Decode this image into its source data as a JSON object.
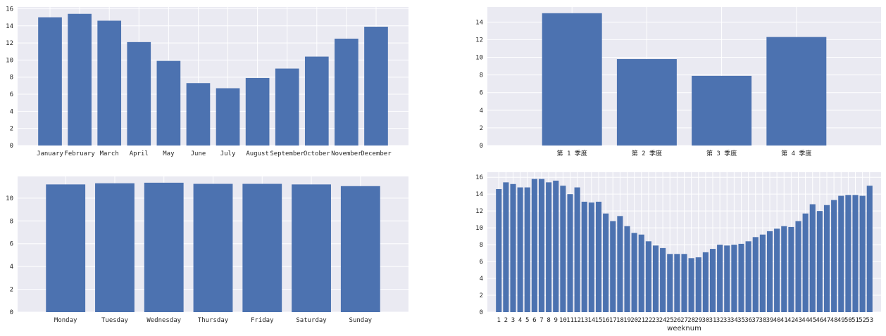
{
  "chart_data": [
    {
      "type": "bar",
      "color": "#4c72b0",
      "background": "#eaeaf2",
      "grid": true,
      "categories": [
        "January",
        "February",
        "March",
        "April",
        "May",
        "June",
        "July",
        "August",
        "September",
        "October",
        "November",
        "December"
      ],
      "values": [
        15.0,
        15.4,
        14.6,
        12.1,
        9.9,
        7.3,
        6.7,
        7.9,
        9.0,
        10.4,
        12.5,
        13.9
      ],
      "yticks": [
        "0",
        "2",
        "4",
        "6",
        "8",
        "10",
        "12",
        "14",
        "16"
      ],
      "ylim": [
        0,
        16.2
      ],
      "xlabel": ""
    },
    {
      "type": "bar",
      "color": "#4c72b0",
      "background": "#eaeaf2",
      "grid": true,
      "categories": [
        "第 1 季度",
        "第 2 季度",
        "第 3 季度",
        "第 4 季度"
      ],
      "values": [
        15.0,
        9.8,
        7.9,
        12.3
      ],
      "yticks": [
        "0",
        "2",
        "4",
        "6",
        "8",
        "10",
        "12",
        "14"
      ],
      "ylim": [
        0,
        15.7
      ],
      "xlabel": ""
    },
    {
      "type": "bar",
      "color": "#4c72b0",
      "background": "#eaeaf2",
      "grid": true,
      "categories": [
        "Monday",
        "Tuesday",
        "Wednesday",
        "Thursday",
        "Friday",
        "Saturday",
        "Sunday"
      ],
      "values": [
        11.2,
        11.3,
        11.35,
        11.25,
        11.25,
        11.2,
        11.05
      ],
      "yticks": [
        "0",
        "2",
        "4",
        "6",
        "8",
        "10"
      ],
      "ylim": [
        0,
        11.9
      ],
      "xlabel": ""
    },
    {
      "type": "bar",
      "color": "#4c72b0",
      "background": "#eaeaf2",
      "grid": true,
      "categories": [
        "1",
        "2",
        "3",
        "4",
        "5",
        "6",
        "7",
        "8",
        "9",
        "10",
        "11",
        "12",
        "13",
        "14",
        "15",
        "16",
        "17",
        "18",
        "19",
        "20",
        "21",
        "22",
        "23",
        "24",
        "25",
        "26",
        "27",
        "28",
        "29",
        "30",
        "31",
        "32",
        "33",
        "34",
        "35",
        "36",
        "37",
        "38",
        "39",
        "40",
        "41",
        "42",
        "43",
        "44",
        "45",
        "46",
        "47",
        "48",
        "49",
        "50",
        "51",
        "52",
        "53"
      ],
      "values": [
        14.6,
        15.4,
        15.2,
        14.8,
        14.8,
        15.8,
        15.8,
        15.4,
        15.6,
        15.0,
        14.0,
        14.8,
        13.1,
        13.0,
        13.1,
        11.7,
        10.8,
        11.4,
        10.2,
        9.4,
        9.2,
        8.4,
        7.9,
        7.6,
        6.9,
        6.9,
        6.9,
        6.4,
        6.5,
        7.1,
        7.5,
        8.0,
        7.9,
        8.0,
        8.1,
        8.4,
        8.9,
        9.2,
        9.6,
        9.9,
        10.2,
        10.1,
        10.8,
        11.7,
        12.8,
        12.0,
        12.7,
        13.3,
        13.8,
        13.9,
        13.9,
        13.8,
        15.0
      ],
      "yticks": [
        "0",
        "2",
        "4",
        "6",
        "8",
        "10",
        "12",
        "14",
        "16"
      ],
      "ylim": [
        0,
        16.6
      ],
      "xlabel": "weeknum"
    }
  ]
}
